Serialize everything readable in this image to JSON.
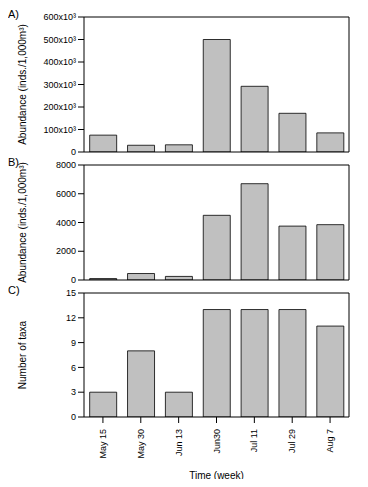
{
  "chart_data": [
    {
      "type": "bar",
      "title": "A)",
      "y_label": "Abundance (inds./1,000m³)",
      "categories": [
        "May 15",
        "May 30",
        "Jun 13",
        "Jun30",
        "Jul 11",
        "Jul 29",
        "Aug 7"
      ],
      "values": [
        75000,
        30000,
        32000,
        500000,
        292000,
        172000,
        85000
      ],
      "color": "#c0c0c0",
      "ylim": [
        0,
        600000
      ],
      "yticks": [
        0,
        {
          "value": 100000,
          "label": "100x10³"
        },
        {
          "value": 200000,
          "label": "200x10³"
        },
        {
          "value": 300000,
          "label": "300x10³"
        },
        {
          "value": 400000,
          "label": "400x10³"
        },
        {
          "value": 500000,
          "label": "500x10³"
        },
        {
          "value": 600000,
          "label": "600x10³"
        }
      ],
      "grid": false,
      "tick_labels": "y"
    },
    {
      "type": "bar",
      "title": "B)",
      "y_label": "Abundance (inds./1,000m³)",
      "categories": [
        "May 15",
        "May 30",
        "Jun 13",
        "Jun30",
        "Jul 11",
        "Jul 29",
        "Aug 7"
      ],
      "values": [
        100,
        450,
        250,
        4500,
        6700,
        3750,
        3850
      ],
      "color": "#c0c0c0",
      "ylim": [
        0,
        8000
      ],
      "yticks": [
        0,
        2000,
        4000,
        6000,
        8000
      ],
      "grid": false,
      "tick_labels": "y"
    },
    {
      "type": "bar",
      "title": "C)",
      "y_label": "Number of taxa",
      "x_label": "Time (week)",
      "categories": [
        "May 15",
        "May 30",
        "Jun 13",
        "Jun30",
        "Jul 11",
        "Jul 29",
        "Aug 7"
      ],
      "values": [
        3,
        8,
        3,
        13,
        13,
        13,
        11
      ],
      "color": "#c0c0c0",
      "ylim": [
        0,
        15
      ],
      "yticks": [
        0,
        3,
        6,
        9,
        12,
        15
      ],
      "grid": false,
      "tick_labels": true
    }
  ]
}
